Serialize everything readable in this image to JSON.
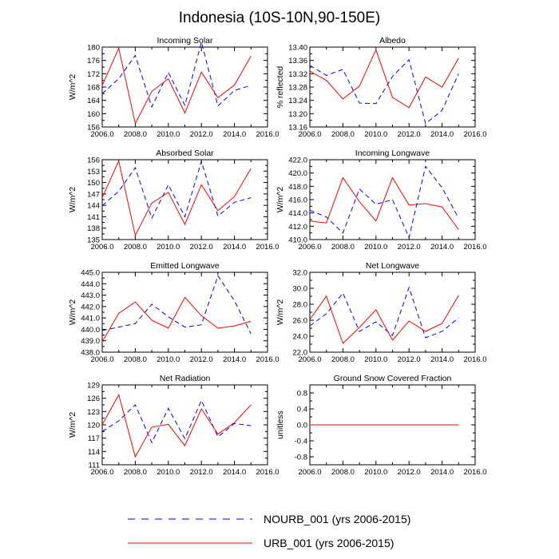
{
  "figure": {
    "title": "Indonesia (10S-10N,90-150E)",
    "legend": [
      {
        "label": "NOURB_001 (yrs 2006-2015)",
        "color": "#0000ff",
        "dash": "dashed"
      },
      {
        "label": "URB_001 (yrs 2006-2015)",
        "color": "#ff0000",
        "dash": "solid"
      }
    ]
  },
  "chart_data": [
    {
      "type": "line",
      "title": "Incoming Solar",
      "ylabel": "W/m^2",
      "xlabel": "",
      "xlim": [
        2006,
        2016
      ],
      "ylim": [
        156,
        180
      ],
      "xticks": [
        "2006.0",
        "2008.0",
        "2010.0",
        "2012.0",
        "2014.0",
        "2016.0"
      ],
      "xtick_values": [
        2006,
        2008,
        2010,
        2012,
        2014,
        2016
      ],
      "yticks": [
        "156",
        "160",
        "164",
        "168",
        "172",
        "176",
        "180"
      ],
      "ytick_values": [
        156,
        160,
        164,
        168,
        172,
        176,
        180
      ],
      "x": [
        2006,
        2007,
        2008,
        2009,
        2010,
        2011,
        2012,
        2013,
        2014,
        2015
      ],
      "series": [
        {
          "name": "NOURB_001",
          "color": "#0000ff",
          "dash": "dashed",
          "values": [
            166,
            170.5,
            177.5,
            162,
            172.4,
            162.5,
            181.5,
            162.3,
            167,
            168.5
          ]
        },
        {
          "name": "URB_001",
          "color": "#ff0000",
          "dash": "solid",
          "values": [
            168.5,
            179.7,
            157,
            166.7,
            170.5,
            160.2,
            172.5,
            164.8,
            168.6,
            177.3
          ]
        }
      ]
    },
    {
      "type": "line",
      "title": "Albedo",
      "ylabel": "% reflected",
      "xlabel": "",
      "xlim": [
        2006,
        2016
      ],
      "ylim": [
        13.16,
        13.4
      ],
      "xticks": [
        "2006.0",
        "2008.0",
        "2010.0",
        "2012.0",
        "2014.0",
        "2016.0"
      ],
      "xtick_values": [
        2006,
        2008,
        2010,
        2012,
        2014,
        2016
      ],
      "yticks": [
        "13.16",
        "13.20",
        "13.24",
        "13.28",
        "13.32",
        "13.36",
        "13.40"
      ],
      "ytick_values": [
        13.16,
        13.2,
        13.24,
        13.28,
        13.32,
        13.36,
        13.4
      ],
      "x": [
        2006,
        2007,
        2008,
        2009,
        2010,
        2011,
        2012,
        2013,
        2014,
        2015
      ],
      "series": [
        {
          "name": "NOURB_001",
          "color": "#0000ff",
          "dash": "dashed",
          "values": [
            13.345,
            13.315,
            13.333,
            13.232,
            13.23,
            13.312,
            13.362,
            13.17,
            13.21,
            13.32
          ]
        },
        {
          "name": "URB_001",
          "color": "#ff0000",
          "dash": "solid",
          "values": [
            13.328,
            13.3,
            13.244,
            13.283,
            13.392,
            13.249,
            13.218,
            13.31,
            13.28,
            13.367
          ]
        }
      ]
    },
    {
      "type": "line",
      "title": "Absorbed Solar",
      "ylabel": "W/m^2",
      "xlabel": "",
      "xlim": [
        2006,
        2016
      ],
      "ylim": [
        135,
        156
      ],
      "xticks": [
        "2006.0",
        "2008.0",
        "2010.0",
        "2012.0",
        "2014.0",
        "2016.0"
      ],
      "xtick_values": [
        2006,
        2008,
        2010,
        2012,
        2014,
        2016
      ],
      "yticks": [
        "135",
        "138",
        "141",
        "144",
        "147",
        "150",
        "153",
        "156"
      ],
      "ytick_values": [
        135,
        138,
        141,
        144,
        147,
        150,
        153,
        156
      ],
      "x": [
        2006,
        2007,
        2008,
        2009,
        2010,
        2011,
        2012,
        2013,
        2014,
        2015
      ],
      "series": [
        {
          "name": "NOURB_001",
          "color": "#0000ff",
          "dash": "dashed",
          "values": [
            143.9,
            147.7,
            153.9,
            140.6,
            149.4,
            141,
            155.6,
            141.2,
            144.8,
            146
          ]
        },
        {
          "name": "URB_001",
          "color": "#ff0000",
          "dash": "solid",
          "values": [
            146,
            155.7,
            136.1,
            144.6,
            147.4,
            139,
            149.4,
            142.6,
            146.3,
            153.7
          ]
        }
      ]
    },
    {
      "type": "line",
      "title": "Incoming Longwave",
      "ylabel": "W/m^2",
      "xlabel": "",
      "xlim": [
        2006,
        2016
      ],
      "ylim": [
        410,
        422
      ],
      "xticks": [
        "2006.0",
        "2008.0",
        "2010.0",
        "2012.0",
        "2014.0",
        "2016.0"
      ],
      "xtick_values": [
        2006,
        2008,
        2010,
        2012,
        2014,
        2016
      ],
      "yticks": [
        "410.0",
        "412.0",
        "414.0",
        "416.0",
        "418.0",
        "420.0",
        "422.0"
      ],
      "ytick_values": [
        410,
        412,
        414,
        416,
        418,
        420,
        422
      ],
      "x": [
        2006,
        2007,
        2008,
        2009,
        2010,
        2011,
        2012,
        2013,
        2014,
        2015
      ],
      "series": [
        {
          "name": "NOURB_001",
          "color": "#0000ff",
          "dash": "dashed",
          "values": [
            414.4,
            413.4,
            411,
            417.6,
            415.3,
            416,
            410.3,
            421,
            417.8,
            413.2
          ]
        },
        {
          "name": "URB_001",
          "color": "#ff0000",
          "dash": "solid",
          "values": [
            412.8,
            412.5,
            419.3,
            415.7,
            412.8,
            419.3,
            415.2,
            415.4,
            414.9,
            411.5
          ]
        }
      ]
    },
    {
      "type": "line",
      "title": "Emitted Longwave",
      "ylabel": "W/m^2",
      "xlabel": "",
      "xlim": [
        2006,
        2016
      ],
      "ylim": [
        438,
        445
      ],
      "xticks": [
        "2006.0",
        "2008.0",
        "2010.0",
        "2012.0",
        "2014.0",
        "2016.0"
      ],
      "xtick_values": [
        2006,
        2008,
        2010,
        2012,
        2014,
        2016
      ],
      "yticks": [
        "438.0",
        "439.0",
        "440.0",
        "441.0",
        "442.0",
        "443.0",
        "444.0",
        "445.0"
      ],
      "ytick_values": [
        438,
        439,
        440,
        441,
        442,
        443,
        444,
        445
      ],
      "x": [
        2006,
        2007,
        2008,
        2009,
        2010,
        2011,
        2012,
        2013,
        2014,
        2015
      ],
      "series": [
        {
          "name": "NOURB_001",
          "color": "#0000ff",
          "dash": "dashed",
          "values": [
            439.9,
            440.2,
            440.5,
            442.2,
            441.1,
            440.2,
            440.4,
            444.7,
            442.5,
            439.6
          ]
        },
        {
          "name": "URB_001",
          "color": "#ff0000",
          "dash": "solid",
          "values": [
            438.9,
            441.4,
            442.4,
            440.8,
            440.1,
            442.8,
            441.2,
            440.1,
            440.3,
            440.7
          ]
        }
      ]
    },
    {
      "type": "line",
      "title": "Net Longwave",
      "ylabel": "W/m^2",
      "xlabel": "",
      "xlim": [
        2006,
        2016
      ],
      "ylim": [
        22,
        32
      ],
      "xticks": [
        "2006.0",
        "2008.0",
        "2010.0",
        "2012.0",
        "2014.0",
        "2016.0"
      ],
      "xtick_values": [
        2006,
        2008,
        2010,
        2012,
        2014,
        2016
      ],
      "yticks": [
        "22.0",
        "24.0",
        "26.0",
        "28.0",
        "30.0",
        "32.0"
      ],
      "ytick_values": [
        22,
        24,
        26,
        28,
        30,
        32
      ],
      "x": [
        2006,
        2007,
        2008,
        2009,
        2010,
        2011,
        2012,
        2013,
        2014,
        2015
      ],
      "series": [
        {
          "name": "NOURB_001",
          "color": "#0000ff",
          "dash": "dashed",
          "values": [
            25.3,
            26.8,
            29.4,
            24.6,
            25.8,
            24.1,
            30.1,
            23.8,
            24.6,
            26.3
          ]
        },
        {
          "name": "URB_001",
          "color": "#ff0000",
          "dash": "solid",
          "values": [
            26.1,
            29,
            23.1,
            25.1,
            27.3,
            23.5,
            25.9,
            24.6,
            25.6,
            29.1
          ]
        }
      ]
    },
    {
      "type": "line",
      "title": "Net Radiation",
      "ylabel": "W/m^2",
      "xlabel": "",
      "xlim": [
        2006,
        2016
      ],
      "ylim": [
        111,
        129
      ],
      "xticks": [
        "2006.0",
        "2008.0",
        "2010.0",
        "2012.0",
        "2014.0",
        "2016.0"
      ],
      "xtick_values": [
        2006,
        2008,
        2010,
        2012,
        2014,
        2016
      ],
      "yticks": [
        "111",
        "114",
        "117",
        "120",
        "123",
        "126",
        "129"
      ],
      "ytick_values": [
        111,
        114,
        117,
        120,
        123,
        126,
        129
      ],
      "x": [
        2006,
        2007,
        2008,
        2009,
        2010,
        2011,
        2012,
        2013,
        2014,
        2015
      ],
      "series": [
        {
          "name": "NOURB_001",
          "color": "#0000ff",
          "dash": "dashed",
          "values": [
            118.5,
            120.9,
            124.5,
            116,
            123.7,
            116.9,
            125.5,
            117.3,
            120.3,
            119.8
          ]
        },
        {
          "name": "URB_001",
          "color": "#ff0000",
          "dash": "solid",
          "values": [
            120,
            126.8,
            112.8,
            119.5,
            120.1,
            115.3,
            123.6,
            117.9,
            120.5,
            124.5
          ]
        }
      ]
    },
    {
      "type": "line",
      "title": "Ground Snow Covered Fraction",
      "ylabel": "unitless",
      "xlabel": "",
      "xlim": [
        2006,
        2016
      ],
      "ylim": [
        -1.0,
        1.0
      ],
      "xticks": [
        "2006.0",
        "2008.0",
        "2010.0",
        "2012.0",
        "2014.0",
        "2016.0"
      ],
      "xtick_values": [
        2006,
        2008,
        2010,
        2012,
        2014,
        2016
      ],
      "yticks": [
        "-0.8",
        "-0.4",
        "0.0",
        "0.4",
        "0.8"
      ],
      "ytick_values": [
        -0.8,
        -0.4,
        0.0,
        0.4,
        0.8
      ],
      "x": [
        2006,
        2007,
        2008,
        2009,
        2010,
        2011,
        2012,
        2013,
        2014,
        2015
      ],
      "series": [
        {
          "name": "NOURB_001",
          "color": "#0000ff",
          "dash": "dashed",
          "values": [
            0,
            0,
            0,
            0,
            0,
            0,
            0,
            0,
            0,
            0
          ]
        },
        {
          "name": "URB_001",
          "color": "#ff0000",
          "dash": "solid",
          "values": [
            0,
            0,
            0,
            0,
            0,
            0,
            0,
            0,
            0,
            0
          ]
        }
      ]
    }
  ]
}
